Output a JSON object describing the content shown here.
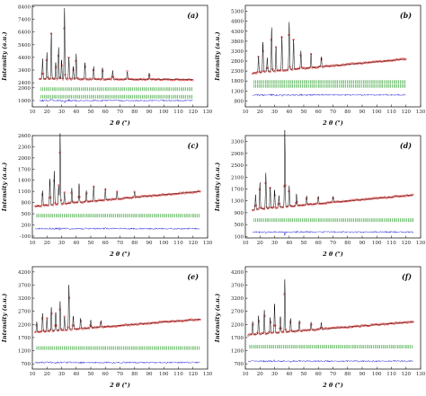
{
  "chart_data": [
    {
      "type": "line",
      "panel_label": "(a)",
      "xlabel": "2 θ (°)",
      "ylabel": "Intensity (a.u.)",
      "xlim": [
        10,
        130
      ],
      "ylim": [
        500,
        8500
      ],
      "x_ticks": [
        10,
        20,
        30,
        40,
        50,
        60,
        70,
        80,
        90,
        100,
        110,
        120,
        130
      ],
      "y_ticks": [
        1000,
        2000,
        2400,
        3400,
        4400,
        5400,
        6400,
        7400,
        8400
      ],
      "y_tick_labels": [
        "1000",
        "2000",
        "2400",
        "3400",
        "4400",
        "5400",
        "6400",
        "7400",
        "8400"
      ],
      "data_range": [
        15,
        120
      ],
      "background": {
        "y_start": 2700,
        "y_end": 2650
      },
      "peaks": [
        [
          17,
          1600
        ],
        [
          20,
          2100
        ],
        [
          23,
          3600
        ],
        [
          26,
          1300
        ],
        [
          28,
          2500
        ],
        [
          30,
          1500
        ],
        [
          32,
          5600
        ],
        [
          35,
          1700
        ],
        [
          38,
          1000
        ],
        [
          40,
          2000
        ],
        [
          46,
          1300
        ],
        [
          52,
          1000
        ],
        [
          58,
          900
        ],
        [
          65,
          700
        ],
        [
          75,
          600
        ],
        [
          90,
          500
        ]
      ],
      "tick_rows": [
        1900,
        1300
      ],
      "difference_baseline": 1000,
      "grid": false,
      "legend": "none"
    },
    {
      "type": "line",
      "panel_label": "(b)",
      "xlabel": "2 θ (°)",
      "ylabel": "Intensity (a.u.)",
      "xlim": [
        10,
        130
      ],
      "ylim": [
        500,
        5600
      ],
      "x_ticks": [
        10,
        20,
        30,
        40,
        50,
        60,
        70,
        80,
        90,
        100,
        110,
        120,
        130
      ],
      "y_ticks": [
        800,
        1300,
        1800,
        2300,
        2800,
        3300,
        3800,
        4300,
        4800,
        5300
      ],
      "y_tick_labels": [
        "800",
        "1300",
        "1800",
        "2300",
        "2800",
        "3300",
        "3800",
        "4300",
        "4800",
        "5300"
      ],
      "data_range": [
        15,
        120
      ],
      "background": {
        "y_start": 2200,
        "y_end": 2900
      },
      "peaks": [
        [
          19,
          800
        ],
        [
          22,
          1500
        ],
        [
          25,
          700
        ],
        [
          28,
          2200
        ],
        [
          31,
          1200
        ],
        [
          35,
          1700
        ],
        [
          40,
          2400
        ],
        [
          43,
          1500
        ],
        [
          48,
          900
        ],
        [
          55,
          700
        ],
        [
          62,
          500
        ]
      ],
      "tick_rows": [
        1750,
        1550
      ],
      "difference_baseline": 1100,
      "grid": false,
      "legend": "none"
    },
    {
      "type": "line",
      "panel_label": "(c)",
      "xlabel": "2 θ (°)",
      "ylabel": "Intensity (a.u.)",
      "xlim": [
        10,
        130
      ],
      "ylim": [
        -150,
        2600
      ],
      "x_ticks": [
        10,
        20,
        30,
        40,
        50,
        60,
        70,
        80,
        90,
        100,
        110,
        120,
        130
      ],
      "y_ticks": [
        -100,
        200,
        500,
        800,
        1100,
        1400,
        1700,
        2000,
        2300,
        2600
      ],
      "y_tick_labels": [
        "-100",
        "200",
        "500",
        "800",
        "1100",
        "1400",
        "1700",
        "2000",
        "2300",
        "2600"
      ],
      "data_range": [
        12,
        125
      ],
      "background": {
        "y_start": 700,
        "y_end": 1100
      },
      "peaks": [
        [
          17,
          400
        ],
        [
          22,
          700
        ],
        [
          25,
          900
        ],
        [
          28,
          500
        ],
        [
          29,
          1900
        ],
        [
          32,
          300
        ],
        [
          37,
          400
        ],
        [
          42,
          500
        ],
        [
          47,
          300
        ],
        [
          52,
          400
        ],
        [
          60,
          300
        ],
        [
          68,
          200
        ],
        [
          80,
          150
        ]
      ],
      "tick_rows": [
        450
      ],
      "difference_baseline": 100,
      "grid": false,
      "legend": "none"
    },
    {
      "type": "line",
      "panel_label": "(d)",
      "xlabel": "2 θ (°)",
      "ylabel": "Intensity (a.u.)",
      "xlim": [
        10,
        130
      ],
      "ylim": [
        50,
        3500
      ],
      "x_ticks": [
        10,
        20,
        30,
        40,
        50,
        60,
        70,
        80,
        90,
        100,
        110,
        120,
        130
      ],
      "y_ticks": [
        100,
        500,
        900,
        1300,
        1700,
        2100,
        2500,
        2900,
        3300
      ],
      "y_tick_labels": [
        "100",
        "500",
        "900",
        "1300",
        "1700",
        "2100",
        "2500",
        "2900",
        "3300"
      ],
      "data_range": [
        15,
        125
      ],
      "background": {
        "y_start": 1000,
        "y_end": 1500
      },
      "peaks": [
        [
          17,
          500
        ],
        [
          20,
          900
        ],
        [
          24,
          1200
        ],
        [
          27,
          700
        ],
        [
          30,
          600
        ],
        [
          33,
          400
        ],
        [
          37,
          2600
        ],
        [
          40,
          700
        ],
        [
          45,
          400
        ],
        [
          52,
          300
        ],
        [
          60,
          250
        ],
        [
          70,
          200
        ]
      ],
      "tick_rows": [
        650
      ],
      "difference_baseline": 250,
      "grid": false,
      "legend": "none"
    },
    {
      "type": "line",
      "panel_label": "(e)",
      "xlabel": "2 θ (°)",
      "ylabel": "Intensity (a.u.)",
      "xlim": [
        10,
        130
      ],
      "ylim": [
        500,
        4400
      ],
      "x_ticks": [
        10,
        20,
        30,
        40,
        50,
        60,
        70,
        80,
        90,
        100,
        110,
        120,
        130
      ],
      "y_ticks": [
        700,
        1200,
        1700,
        2200,
        2700,
        3200,
        3700,
        4200
      ],
      "y_tick_labels": [
        "700",
        "1200",
        "1700",
        "2200",
        "2700",
        "3200",
        "3700",
        "4200"
      ],
      "data_range": [
        12,
        125
      ],
      "background": {
        "y_start": 1900,
        "y_end": 2400
      },
      "peaks": [
        [
          13,
          400
        ],
        [
          17,
          700
        ],
        [
          20,
          500
        ],
        [
          23,
          900
        ],
        [
          26,
          700
        ],
        [
          29,
          1100
        ],
        [
          32,
          500
        ],
        [
          35,
          1700
        ],
        [
          38,
          500
        ],
        [
          43,
          400
        ],
        [
          50,
          300
        ],
        [
          57,
          250
        ]
      ],
      "tick_rows": [
        1300
      ],
      "difference_baseline": 750,
      "grid": false,
      "legend": "none"
    },
    {
      "type": "line",
      "panel_label": "(f)",
      "xlabel": "2 θ (°)",
      "ylabel": "Intensity (a.u.)",
      "xlim": [
        10,
        130
      ],
      "ylim": [
        500,
        4400
      ],
      "x_ticks": [
        10,
        20,
        30,
        40,
        50,
        60,
        70,
        80,
        90,
        100,
        110,
        120,
        130
      ],
      "y_ticks": [
        700,
        1200,
        1700,
        2200,
        2700,
        3200,
        3700,
        4200
      ],
      "y_tick_labels": [
        "700",
        "1200",
        "1700",
        "2200",
        "2700",
        "3200",
        "3700",
        "4200"
      ],
      "data_range": [
        12,
        125
      ],
      "background": {
        "y_start": 1800,
        "y_end": 2300
      },
      "peaks": [
        [
          15,
          500
        ],
        [
          19,
          700
        ],
        [
          23,
          900
        ],
        [
          27,
          600
        ],
        [
          30,
          1100
        ],
        [
          34,
          600
        ],
        [
          37,
          2000
        ],
        [
          41,
          500
        ],
        [
          47,
          400
        ],
        [
          55,
          300
        ],
        [
          62,
          250
        ]
      ],
      "tick_rows": [
        1350
      ],
      "difference_baseline": 800,
      "grid": false,
      "legend": "none"
    }
  ],
  "style": {
    "observed_color": "#e02020",
    "calculated_color": "#000000",
    "bragg_tick_color": "#1f9a1f",
    "difference_color": "#1a1ad8",
    "frame_color": "#222222"
  }
}
